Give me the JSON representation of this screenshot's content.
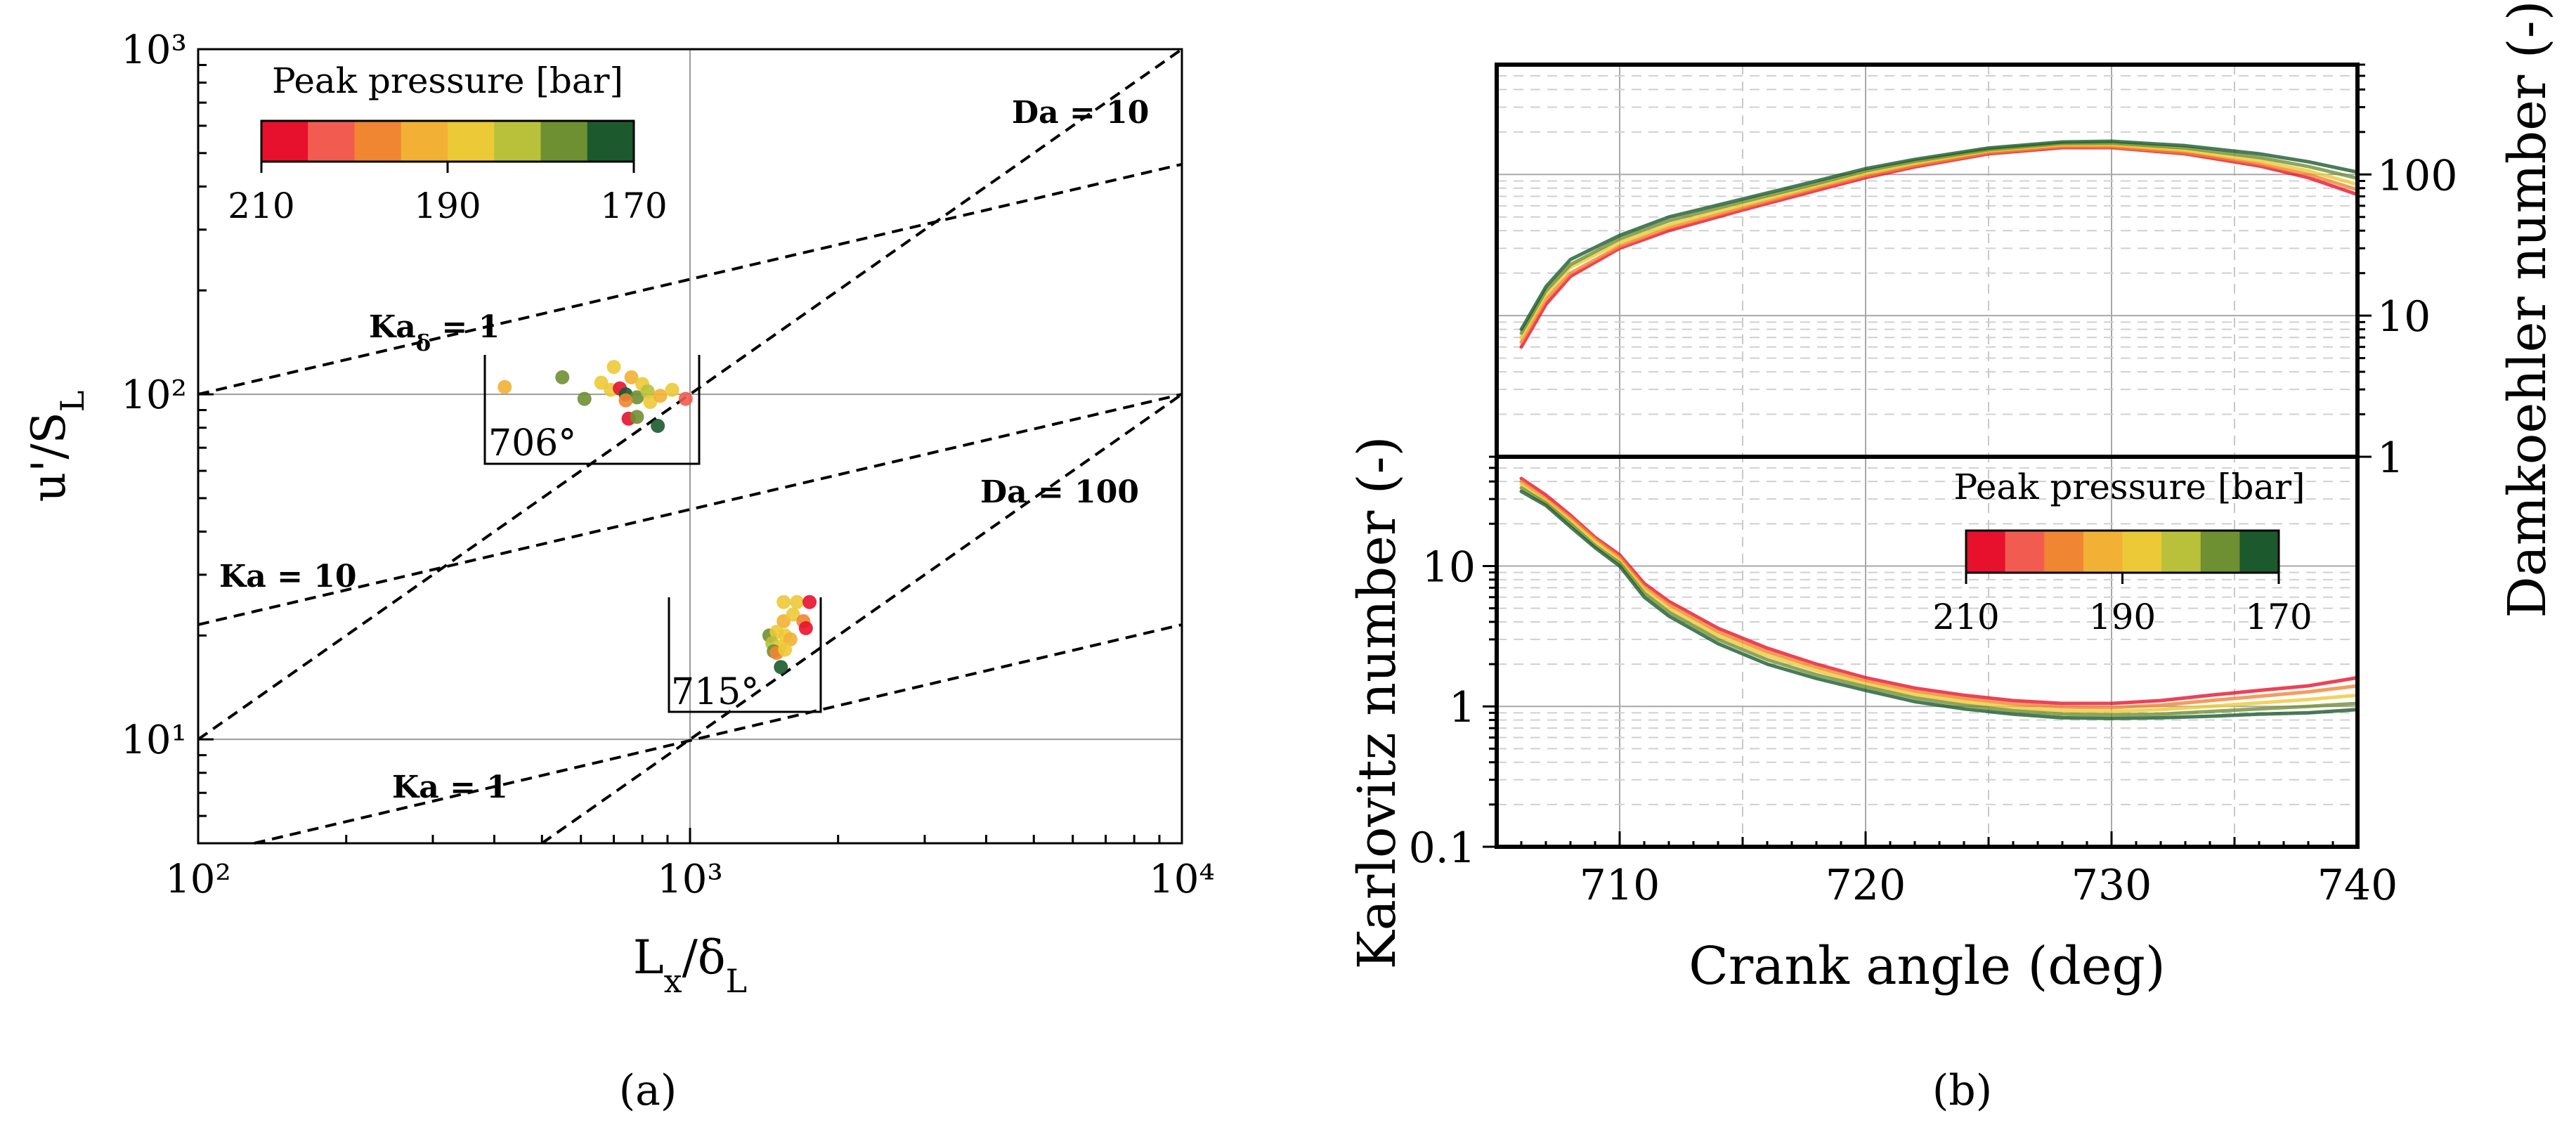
{
  "colors": {
    "pressure_scale": [
      "#e8112d",
      "#f25c50",
      "#f08532",
      "#f2b134",
      "#ecc936",
      "#b9c13a",
      "#6f8f33",
      "#1c5a2e"
    ]
  },
  "chart_data": [
    {
      "id": "a",
      "type": "scatter",
      "panel_label": "(a)",
      "xlabel": "Lx/δL",
      "ylabel": "u'/SL",
      "xscale": "log",
      "yscale": "log",
      "xlim": [
        100,
        10000
      ],
      "ylim": [
        5,
        1000
      ],
      "x_ticks": [
        "10²",
        "10³",
        "10⁴"
      ],
      "y_ticks": [
        "10¹",
        "10²",
        "10³"
      ],
      "grid": "major",
      "colorbar": {
        "title": "Peak pressure [bar]",
        "ticks": [
          "210",
          "190",
          "170"
        ],
        "range": [
          210,
          170
        ],
        "placement": "top-left"
      },
      "lines": [
        {
          "label": "Da = 10",
          "label_parts": [
            "Da = 10"
          ],
          "points": [
            [
              100,
              10
            ],
            [
              10000,
              1000
            ]
          ]
        },
        {
          "label": "Da = 100",
          "label_parts": [
            "Da = 100"
          ],
          "points": [
            [
              500,
              5
            ],
            [
              10000,
              100
            ]
          ]
        },
        {
          "label": "Kaδ = 1",
          "label_parts": [
            "Ka",
            "δ",
            " = 1"
          ],
          "points": [
            [
              100,
              100
            ],
            [
              10000,
              464
            ]
          ]
        },
        {
          "label": "Ka = 10",
          "label_parts": [
            "Ka = 10"
          ],
          "points": [
            [
              100,
              21.5
            ],
            [
              10000,
              100
            ]
          ]
        },
        {
          "label": "Ka = 1",
          "label_parts": [
            "Ka = 1"
          ],
          "points": [
            [
              130,
              5
            ],
            [
              10000,
              21.5
            ]
          ]
        }
      ],
      "groups": [
        {
          "label": "706°",
          "points": [
            {
              "x": 420,
              "y": 105,
              "p": 192
            },
            {
              "x": 550,
              "y": 112,
              "p": 178
            },
            {
              "x": 610,
              "y": 97,
              "p": 176
            },
            {
              "x": 660,
              "y": 108,
              "p": 188
            },
            {
              "x": 700,
              "y": 120,
              "p": 190
            },
            {
              "x": 690,
              "y": 103,
              "p": 186
            },
            {
              "x": 720,
              "y": 104,
              "p": 210
            },
            {
              "x": 740,
              "y": 100,
              "p": 170
            },
            {
              "x": 760,
              "y": 112,
              "p": 192
            },
            {
              "x": 780,
              "y": 98,
              "p": 178
            },
            {
              "x": 800,
              "y": 107,
              "p": 190
            },
            {
              "x": 820,
              "y": 102,
              "p": 184
            },
            {
              "x": 830,
              "y": 95,
              "p": 186
            },
            {
              "x": 870,
              "y": 99,
              "p": 192
            },
            {
              "x": 920,
              "y": 103,
              "p": 188
            },
            {
              "x": 980,
              "y": 97,
              "p": 204
            },
            {
              "x": 750,
              "y": 85,
              "p": 208
            },
            {
              "x": 780,
              "y": 86,
              "p": 178
            },
            {
              "x": 860,
              "y": 81,
              "p": 170
            },
            {
              "x": 740,
              "y": 96,
              "p": 196
            }
          ]
        },
        {
          "label": "715°",
          "points": [
            {
              "x": 1550,
              "y": 25,
              "p": 190
            },
            {
              "x": 1650,
              "y": 25,
              "p": 188
            },
            {
              "x": 1750,
              "y": 25,
              "p": 208
            },
            {
              "x": 1550,
              "y": 22,
              "p": 192
            },
            {
              "x": 1620,
              "y": 23,
              "p": 186
            },
            {
              "x": 1700,
              "y": 22,
              "p": 200
            },
            {
              "x": 1720,
              "y": 21,
              "p": 206
            },
            {
              "x": 1450,
              "y": 20,
              "p": 176
            },
            {
              "x": 1500,
              "y": 20.5,
              "p": 190
            },
            {
              "x": 1560,
              "y": 20,
              "p": 188
            },
            {
              "x": 1600,
              "y": 19.5,
              "p": 192
            },
            {
              "x": 1470,
              "y": 19,
              "p": 184
            },
            {
              "x": 1520,
              "y": 18.5,
              "p": 190
            },
            {
              "x": 1480,
              "y": 18,
              "p": 178
            },
            {
              "x": 1500,
              "y": 17.8,
              "p": 196
            },
            {
              "x": 1560,
              "y": 18.2,
              "p": 186
            },
            {
              "x": 1530,
              "y": 16.2,
              "p": 174
            }
          ]
        }
      ]
    },
    {
      "id": "b",
      "type": "line",
      "panel_label": "(b)",
      "xlabel": "Crank angle (deg)",
      "xlim": [
        705,
        740
      ],
      "x_ticks": [
        710,
        720,
        730,
        740
      ],
      "shared_x": true,
      "colorbar": {
        "title": "Peak pressure [bar]",
        "ticks": [
          "210",
          "190",
          "170"
        ],
        "range": [
          210,
          170
        ],
        "placement": "lower panel, right"
      },
      "top": {
        "ylabel": "Damkoehler number (-)",
        "yaxis_side": "right",
        "yscale": "log",
        "ylim": [
          1,
          600
        ],
        "y_ticks": [
          1,
          10,
          100
        ],
        "x": [
          706,
          707,
          708,
          710,
          712,
          715,
          718,
          720,
          722,
          725,
          728,
          730,
          733,
          736,
          738,
          740
        ],
        "series": [
          {
            "p": 210,
            "values": [
              6,
              12,
              19,
              30,
              40,
              56,
              77,
              95,
              113,
              140,
              155,
              155,
              140,
              115,
              95,
              72
            ]
          },
          {
            "p": 200,
            "values": [
              6.5,
              13,
              20,
              31,
              42,
              58,
              80,
              98,
              116,
              143,
              158,
              157,
              143,
              119,
              100,
              78
            ]
          },
          {
            "p": 190,
            "values": [
              7,
              14,
              22,
              33,
              44,
              61,
              83,
              102,
              120,
              147,
              162,
              162,
              148,
              125,
              106,
              85
            ]
          },
          {
            "p": 180,
            "values": [
              7.5,
              15,
              23,
              35,
              47,
              64,
              86,
              106,
              124,
              150,
              166,
              167,
              154,
              132,
              114,
              94
            ]
          },
          {
            "p": 170,
            "values": [
              8,
              16,
              25,
              37,
              50,
              67,
              90,
              110,
              128,
              154,
              170,
              172,
              160,
              140,
              123,
              104
            ]
          }
        ]
      },
      "bottom": {
        "ylabel": "Karlovitz number (-)",
        "yscale": "log",
        "ylim": [
          0.1,
          60
        ],
        "y_ticks": [
          "0.1",
          "1",
          "10"
        ],
        "x": [
          706,
          707,
          708,
          709,
          710,
          711,
          712,
          714,
          716,
          718,
          720,
          722,
          724,
          726,
          728,
          730,
          732,
          734,
          736,
          738,
          740
        ],
        "series": [
          {
            "p": 210,
            "values": [
              42,
              32,
              23,
              16,
              12,
              7.5,
              5.6,
              3.6,
              2.6,
              2.0,
              1.6,
              1.35,
              1.2,
              1.1,
              1.05,
              1.05,
              1.1,
              1.2,
              1.3,
              1.4,
              1.6
            ]
          },
          {
            "p": 200,
            "values": [
              40,
              30,
              22,
              15.5,
              11.5,
              7.1,
              5.3,
              3.4,
              2.45,
              1.9,
              1.52,
              1.28,
              1.14,
              1.04,
              0.99,
              0.98,
              1.02,
              1.1,
              1.18,
              1.27,
              1.4
            ]
          },
          {
            "p": 190,
            "values": [
              38,
              29,
              21,
              15,
              11,
              6.8,
              5.0,
              3.2,
              2.3,
              1.8,
              1.45,
              1.22,
              1.08,
              0.98,
              0.93,
              0.92,
              0.95,
              1.0,
              1.06,
              1.12,
              1.2
            ]
          },
          {
            "p": 180,
            "values": [
              36,
              28,
              20,
              14,
              10.5,
              6.4,
              4.7,
              3.0,
              2.15,
              1.68,
              1.38,
              1.15,
              1.02,
              0.93,
              0.88,
              0.87,
              0.88,
              0.92,
              0.96,
              1.0,
              1.05
            ]
          },
          {
            "p": 170,
            "values": [
              34,
              27,
              19,
              13.5,
              10,
              6.0,
              4.4,
              2.8,
              2.0,
              1.58,
              1.3,
              1.08,
              0.96,
              0.88,
              0.83,
              0.82,
              0.83,
              0.85,
              0.88,
              0.9,
              0.95
            ]
          }
        ]
      }
    }
  ]
}
